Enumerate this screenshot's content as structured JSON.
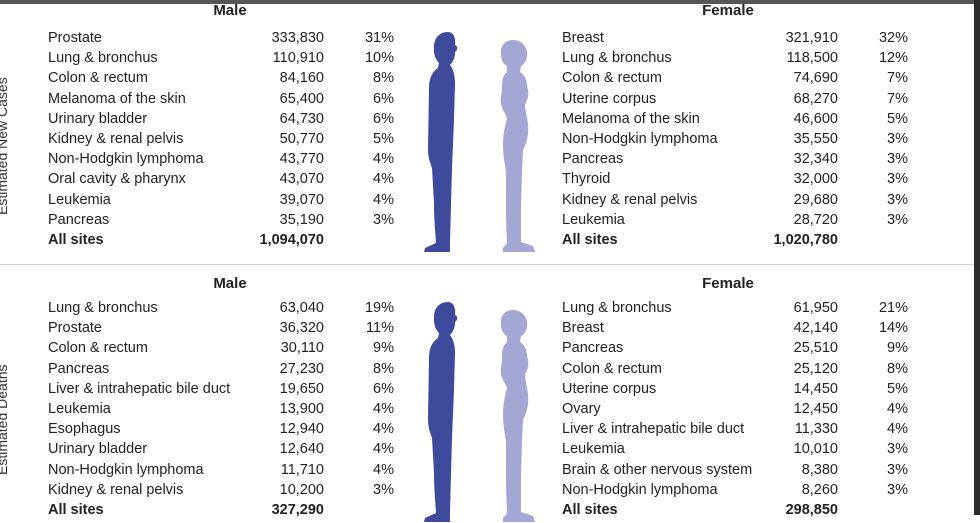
{
  "side_labels": {
    "new_cases": "Estimated New Cases",
    "deaths": "Estimated Deaths"
  },
  "colors": {
    "male_figure": "#3f4a9c",
    "female_figure": "#a4a6d4"
  },
  "new_cases": {
    "male": {
      "header": "Male",
      "rows": [
        {
          "site": "Prostate",
          "count": "333,830",
          "pct": "31%"
        },
        {
          "site": "Lung & bronchus",
          "count": "110,910",
          "pct": "10%"
        },
        {
          "site": "Colon & rectum",
          "count": "84,160",
          "pct": "8%"
        },
        {
          "site": "Melanoma of the skin",
          "count": "65,400",
          "pct": "6%"
        },
        {
          "site": "Urinary bladder",
          "count": "64,730",
          "pct": "6%"
        },
        {
          "site": "Kidney & renal pelvis",
          "count": "50,770",
          "pct": "5%"
        },
        {
          "site": "Non-Hodgkin lymphoma",
          "count": "43,770",
          "pct": "4%"
        },
        {
          "site": "Oral cavity & pharynx",
          "count": "43,070",
          "pct": "4%"
        },
        {
          "site": "Leukemia",
          "count": "39,070",
          "pct": "4%"
        },
        {
          "site": "Pancreas",
          "count": "35,190",
          "pct": "3%"
        }
      ],
      "total": {
        "site": "All sites",
        "count": "1,094,070",
        "pct": ""
      }
    },
    "female": {
      "header": "Female",
      "rows": [
        {
          "site": "Breast",
          "count": "321,910",
          "pct": "32%"
        },
        {
          "site": "Lung & bronchus",
          "count": "118,500",
          "pct": "12%"
        },
        {
          "site": "Colon & rectum",
          "count": "74,690",
          "pct": "7%"
        },
        {
          "site": "Uterine corpus",
          "count": "68,270",
          "pct": "7%"
        },
        {
          "site": "Melanoma of the skin",
          "count": "46,600",
          "pct": "5%"
        },
        {
          "site": "Non-Hodgkin lymphoma",
          "count": "35,550",
          "pct": "3%"
        },
        {
          "site": "Pancreas",
          "count": "32,340",
          "pct": "3%"
        },
        {
          "site": "Thyroid",
          "count": "32,000",
          "pct": "3%"
        },
        {
          "site": "Kidney & renal pelvis",
          "count": "29,680",
          "pct": "3%"
        },
        {
          "site": "Leukemia",
          "count": "28,720",
          "pct": "3%"
        }
      ],
      "total": {
        "site": "All sites",
        "count": "1,020,780",
        "pct": ""
      }
    }
  },
  "deaths": {
    "male": {
      "header": "Male",
      "rows": [
        {
          "site": "Lung & bronchus",
          "count": "63,040",
          "pct": "19%"
        },
        {
          "site": "Prostate",
          "count": "36,320",
          "pct": "11%"
        },
        {
          "site": "Colon & rectum",
          "count": "30,110",
          "pct": "9%"
        },
        {
          "site": "Pancreas",
          "count": "27,230",
          "pct": "8%"
        },
        {
          "site": "Liver & intrahepatic bile duct",
          "count": "19,650",
          "pct": "6%"
        },
        {
          "site": "Leukemia",
          "count": "13,900",
          "pct": "4%"
        },
        {
          "site": "Esophagus",
          "count": "12,940",
          "pct": "4%"
        },
        {
          "site": "Urinary bladder",
          "count": "12,640",
          "pct": "4%"
        },
        {
          "site": "Non-Hodgkin lymphoma",
          "count": "11,710",
          "pct": "4%"
        },
        {
          "site": "Kidney & renal pelvis",
          "count": "10,200",
          "pct": "3%"
        }
      ],
      "total": {
        "site": "All sites",
        "count": "327,290",
        "pct": ""
      }
    },
    "female": {
      "header": "Female",
      "rows": [
        {
          "site": "Lung & bronchus",
          "count": "61,950",
          "pct": "21%"
        },
        {
          "site": "Breast",
          "count": "42,140",
          "pct": "14%"
        },
        {
          "site": "Pancreas",
          "count": "25,510",
          "pct": "9%"
        },
        {
          "site": "Colon & rectum",
          "count": "25,120",
          "pct": "8%"
        },
        {
          "site": "Uterine corpus",
          "count": "14,450",
          "pct": "5%"
        },
        {
          "site": "Ovary",
          "count": "12,450",
          "pct": "4%"
        },
        {
          "site": "Liver & intrahepatic bile duct",
          "count": "11,330",
          "pct": "4%"
        },
        {
          "site": "Leukemia",
          "count": "10,010",
          "pct": "3%"
        },
        {
          "site": "Brain & other nervous system",
          "count": "8,380",
          "pct": "3%"
        },
        {
          "site": "Non-Hodgkin lymphoma",
          "count": "8,260",
          "pct": "3%"
        }
      ],
      "total": {
        "site": "All sites",
        "count": "298,850",
        "pct": ""
      }
    }
  }
}
